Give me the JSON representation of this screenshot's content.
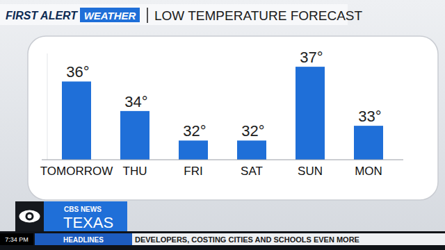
{
  "chart_data": {
    "type": "bar",
    "title": "LOW TEMPERATURE FORECAST",
    "categories": [
      "TOMORROW",
      "THU",
      "FRI",
      "SAT",
      "SUN",
      "MON"
    ],
    "values": [
      36,
      34,
      32,
      32,
      37,
      33
    ],
    "value_labels": [
      "36°",
      "34°",
      "32°",
      "32°",
      "37°",
      "33°"
    ],
    "color": "#1f6fd8",
    "ylim": [
      30.7,
      37.9
    ],
    "data_labels": true,
    "tick_labels": false
  },
  "branding": {
    "brand": "FIRST ALERT",
    "brand_accent": "WEATHER",
    "network": "CBS NEWS",
    "region": "TEXAS",
    "time": "7:34 PM",
    "ticker_label": "HEADLINES",
    "ticker": "DEVELOPERS, COSTING CITIES AND SCHOOLS EVEN MORE"
  }
}
